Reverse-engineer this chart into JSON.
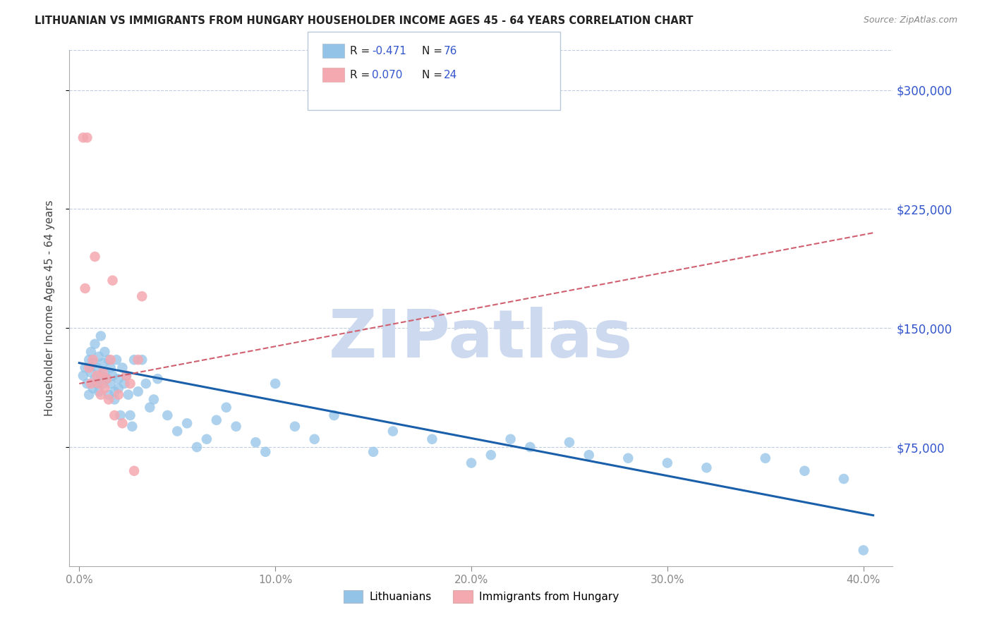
{
  "title": "LITHUANIAN VS IMMIGRANTS FROM HUNGARY HOUSEHOLDER INCOME AGES 45 - 64 YEARS CORRELATION CHART",
  "source": "Source: ZipAtlas.com",
  "ylabel": "Householder Income Ages 45 - 64 years",
  "xlabel_ticks": [
    "0.0%",
    "10.0%",
    "20.0%",
    "30.0%",
    "40.0%"
  ],
  "xlabel_vals": [
    0.0,
    0.1,
    0.2,
    0.3,
    0.4
  ],
  "ytick_labels": [
    "$75,000",
    "$150,000",
    "$225,000",
    "$300,000"
  ],
  "ytick_vals": [
    75000,
    150000,
    225000,
    300000
  ],
  "ylim": [
    0,
    325000
  ],
  "xlim": [
    -0.005,
    0.415
  ],
  "R_blue": -0.471,
  "N_blue": 76,
  "R_pink": 0.07,
  "N_pink": 24,
  "blue_color": "#93c4e8",
  "pink_color": "#f4a8b0",
  "blue_line_color": "#1a5faa",
  "pink_line_color": "#d06070",
  "watermark": "ZIPatlas",
  "watermark_color": "#ccd9ef",
  "legend_label_blue": "Lithuanians",
  "legend_label_pink": "Immigrants from Hungary",
  "legend_text_color": "#3355cc",
  "blue_scatter_x": [
    0.002,
    0.003,
    0.004,
    0.005,
    0.005,
    0.006,
    0.006,
    0.007,
    0.007,
    0.008,
    0.008,
    0.009,
    0.009,
    0.01,
    0.01,
    0.011,
    0.011,
    0.012,
    0.012,
    0.013,
    0.013,
    0.014,
    0.015,
    0.015,
    0.016,
    0.016,
    0.017,
    0.018,
    0.018,
    0.019,
    0.02,
    0.02,
    0.021,
    0.022,
    0.023,
    0.024,
    0.025,
    0.026,
    0.027,
    0.028,
    0.03,
    0.032,
    0.034,
    0.036,
    0.038,
    0.04,
    0.045,
    0.05,
    0.055,
    0.06,
    0.065,
    0.07,
    0.075,
    0.08,
    0.09,
    0.095,
    0.1,
    0.11,
    0.12,
    0.13,
    0.15,
    0.16,
    0.18,
    0.2,
    0.21,
    0.22,
    0.23,
    0.25,
    0.26,
    0.28,
    0.3,
    0.32,
    0.35,
    0.37,
    0.39,
    0.4
  ],
  "blue_scatter_y": [
    120000,
    125000,
    115000,
    130000,
    108000,
    122000,
    135000,
    128000,
    112000,
    140000,
    118000,
    125000,
    115000,
    132000,
    110000,
    145000,
    120000,
    128000,
    115000,
    135000,
    122000,
    118000,
    130000,
    108000,
    125000,
    115000,
    120000,
    110000,
    105000,
    130000,
    118000,
    112000,
    95000,
    125000,
    115000,
    120000,
    108000,
    95000,
    88000,
    130000,
    110000,
    130000,
    115000,
    100000,
    105000,
    118000,
    95000,
    85000,
    90000,
    75000,
    80000,
    92000,
    100000,
    88000,
    78000,
    72000,
    115000,
    88000,
    80000,
    95000,
    72000,
    85000,
    80000,
    65000,
    70000,
    80000,
    75000,
    78000,
    70000,
    68000,
    65000,
    62000,
    68000,
    60000,
    55000,
    10000
  ],
  "pink_scatter_x": [
    0.002,
    0.003,
    0.004,
    0.005,
    0.006,
    0.007,
    0.008,
    0.009,
    0.01,
    0.011,
    0.012,
    0.013,
    0.014,
    0.015,
    0.016,
    0.017,
    0.018,
    0.02,
    0.022,
    0.024,
    0.026,
    0.028,
    0.03,
    0.032
  ],
  "pink_scatter_y": [
    270000,
    175000,
    270000,
    125000,
    115000,
    130000,
    195000,
    120000,
    115000,
    108000,
    122000,
    112000,
    118000,
    105000,
    130000,
    180000,
    95000,
    108000,
    90000,
    120000,
    115000,
    60000,
    130000,
    170000
  ],
  "blue_line_x0": 0.0,
  "blue_line_x1": 0.405,
  "blue_line_y0": 128000,
  "blue_line_y1": 32000,
  "pink_line_x0": 0.0,
  "pink_line_x1": 0.405,
  "pink_line_y0": 115000,
  "pink_line_y1": 210000
}
